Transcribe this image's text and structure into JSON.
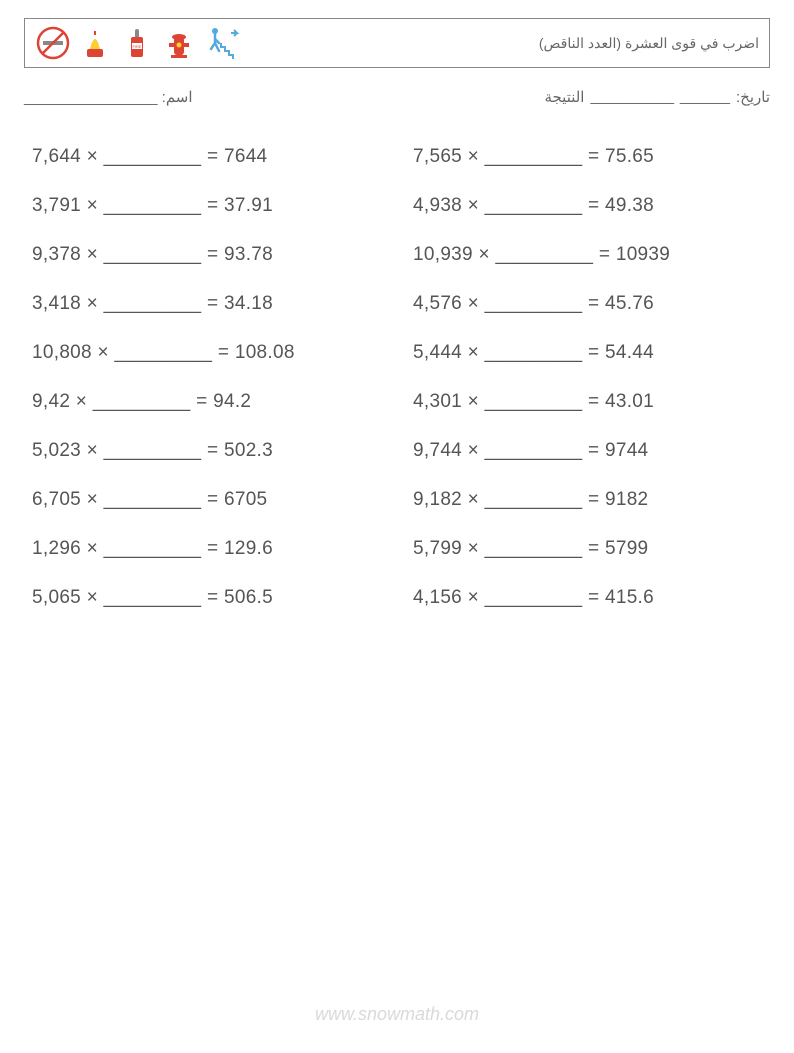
{
  "header": {
    "title": "اضرب في قوى العشرة (العدد الناقص)"
  },
  "info": {
    "name_label": "اسم:",
    "name_blank": "________________",
    "date_label": "تاريخ:",
    "date_blank": "______",
    "score_label": "النتيجة",
    "score_blank": "__________"
  },
  "problems": {
    "left": [
      {
        "a": "7,644",
        "r": "7644"
      },
      {
        "a": "3,791",
        "r": "37.91"
      },
      {
        "a": "9,378",
        "r": "93.78"
      },
      {
        "a": "3,418",
        "r": "34.18"
      },
      {
        "a": "10,808",
        "r": "108.08"
      },
      {
        "a": "9,42",
        "r": "94.2"
      },
      {
        "a": "5,023",
        "r": "502.3"
      },
      {
        "a": "6,705",
        "r": "6705"
      },
      {
        "a": "1,296",
        "r": "129.6"
      },
      {
        "a": "5,065",
        "r": "506.5"
      }
    ],
    "right": [
      {
        "a": "7,565",
        "r": "75.65"
      },
      {
        "a": "4,938",
        "r": "49.38"
      },
      {
        "a": "10,939",
        "r": "10939"
      },
      {
        "a": "4,576",
        "r": "45.76"
      },
      {
        "a": "5,444",
        "r": "54.44"
      },
      {
        "a": "4,301",
        "r": "43.01"
      },
      {
        "a": "9,744",
        "r": "9744"
      },
      {
        "a": "9,182",
        "r": "9182"
      },
      {
        "a": "5,799",
        "r": "5799"
      },
      {
        "a": "4,156",
        "r": "415.6"
      }
    ],
    "blank": "_________",
    "op": "×",
    "eq": "="
  },
  "footer": {
    "url": "www.snowmath.com"
  },
  "colors": {
    "text": "#555555",
    "border": "#888888",
    "footer": "#d9d9d9"
  }
}
